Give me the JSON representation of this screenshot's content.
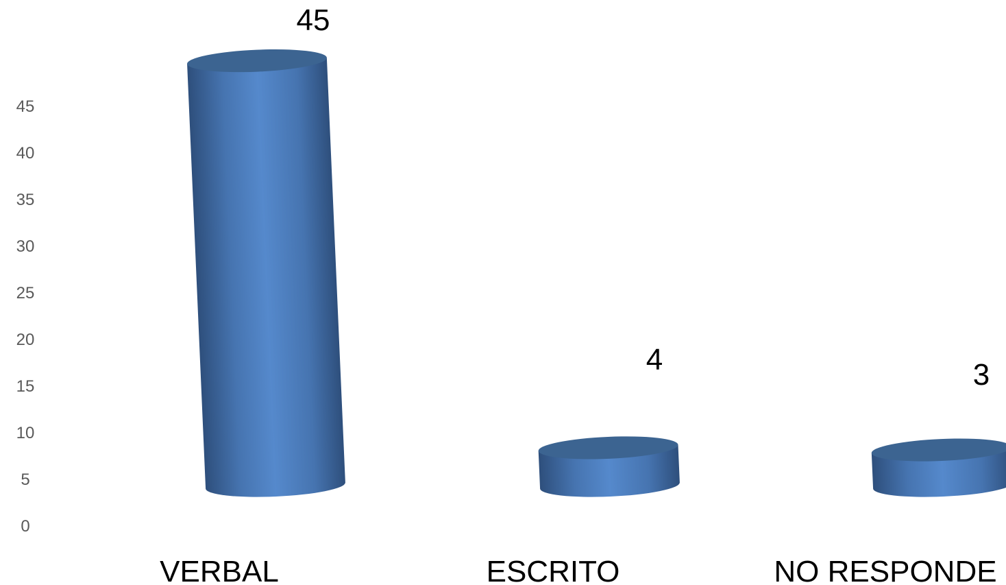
{
  "chart_data": {
    "type": "bar",
    "style": "3d-cylinder",
    "categories": [
      "VERBAL",
      "ESCRITO",
      "NO RESPONDE"
    ],
    "values": [
      45,
      4,
      3
    ],
    "data_labels": [
      "45",
      "4",
      "3"
    ],
    "y_ticks": [
      "0",
      "5",
      "10",
      "15",
      "20",
      "25",
      "30",
      "35",
      "40",
      "45"
    ],
    "ylim": [
      0,
      45
    ],
    "grid": false,
    "legend": "none",
    "colors": {
      "bar": "#4F81BD",
      "bar_top": "#3C6491",
      "tick_text": "#595959",
      "label_text": "#000000"
    }
  }
}
